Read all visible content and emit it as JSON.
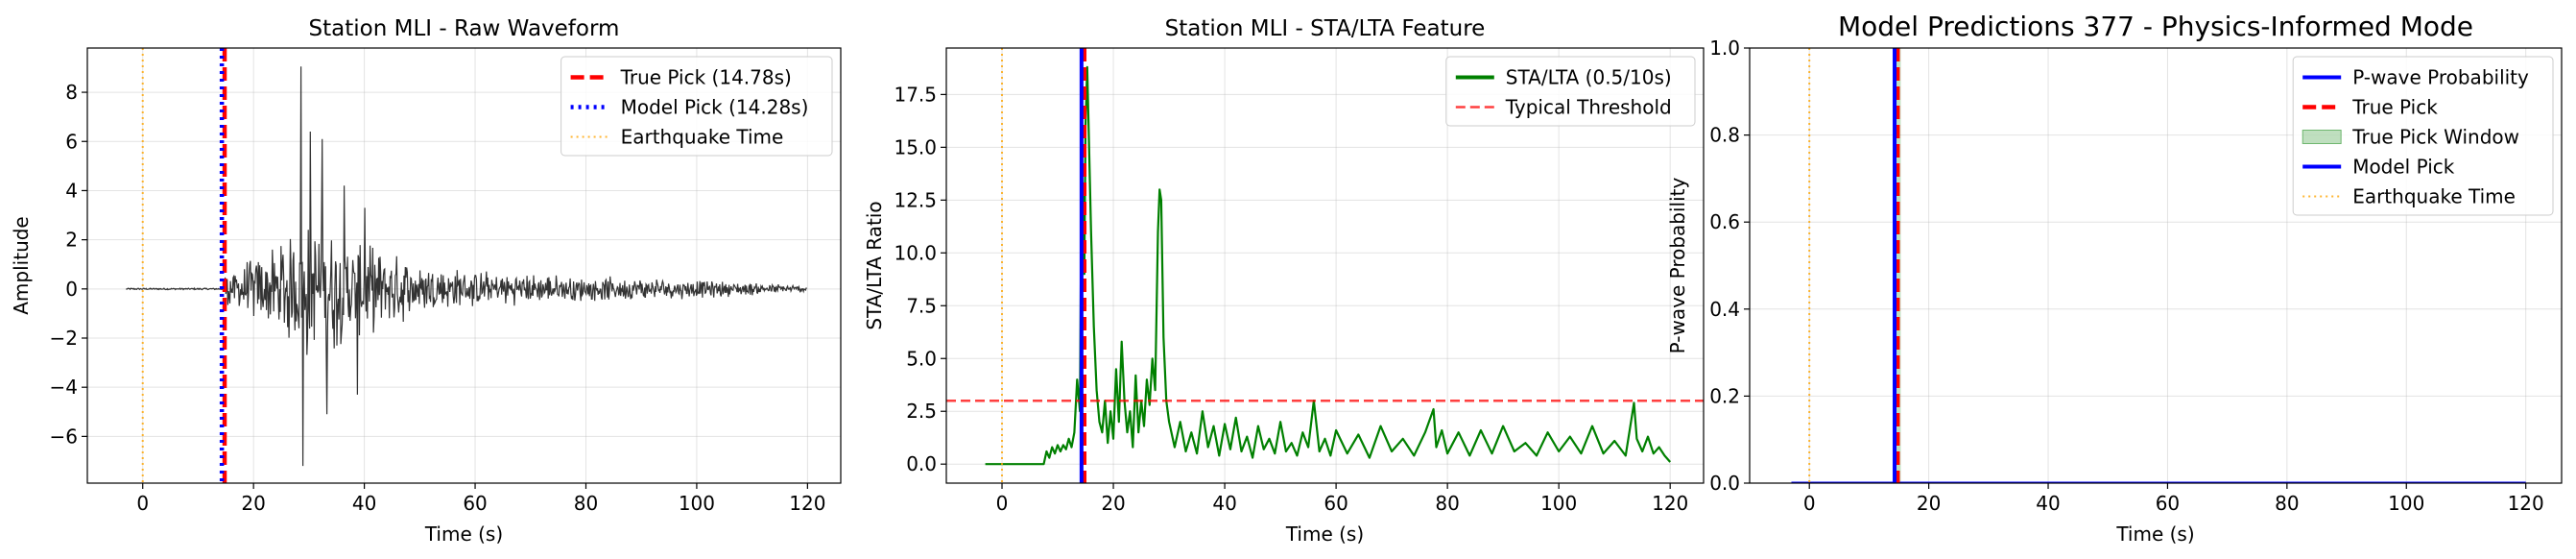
{
  "chart_data": [
    {
      "type": "line",
      "title": "Station MLI - Raw Waveform",
      "xlabel": "Time (s)",
      "ylabel": "Amplitude",
      "xlim": [
        -10,
        126
      ],
      "ylim": [
        -7.9,
        9.8
      ],
      "xticks": [
        0,
        20,
        40,
        60,
        80,
        100,
        120
      ],
      "yticks": [
        -6,
        -4,
        -2,
        0,
        2,
        4,
        6,
        8
      ],
      "grid": true,
      "legend_position": "top-right",
      "waveform": {
        "color": "#333333",
        "x_range": [
          -3,
          120
        ],
        "noise_level_before_onset": 0.03,
        "onset_x": 14.78,
        "peaks": [
          {
            "x": 28.6,
            "y": 9.05
          },
          {
            "x": 28.9,
            "y": -7.2
          },
          {
            "x": 30.2,
            "y": 6.4
          },
          {
            "x": 32.4,
            "y": 6.1
          },
          {
            "x": 33.3,
            "y": -5.1
          },
          {
            "x": 36.4,
            "y": 4.2
          },
          {
            "x": 38.8,
            "y": -4.3
          },
          {
            "x": 40.1,
            "y": 3.3
          }
        ],
        "envelope": [
          {
            "x": 14.78,
            "a": 0.8
          },
          {
            "x": 20,
            "a": 1.4
          },
          {
            "x": 26,
            "a": 2.2
          },
          {
            "x": 29,
            "a": 3.2
          },
          {
            "x": 35,
            "a": 2.6
          },
          {
            "x": 40,
            "a": 2.0
          },
          {
            "x": 50,
            "a": 1.2
          },
          {
            "x": 60,
            "a": 0.8
          },
          {
            "x": 80,
            "a": 0.55
          },
          {
            "x": 100,
            "a": 0.42
          },
          {
            "x": 120,
            "a": 0.15
          }
        ]
      },
      "vlines": [
        {
          "name": "True Pick (14.78s)",
          "x": 14.78,
          "color": "#ff0000",
          "style": "dashed"
        },
        {
          "name": "Model Pick (14.28s)",
          "x": 14.28,
          "color": "#0000ff",
          "style": "dotted"
        },
        {
          "name": "Earthquake Time",
          "x": 0,
          "color": "#ffa500",
          "style": "dotted-light"
        }
      ],
      "legend": [
        "True Pick (14.78s)",
        "Model Pick (14.28s)",
        "Earthquake Time"
      ]
    },
    {
      "type": "line",
      "title": "Station MLI - STA/LTA Feature",
      "xlabel": "Time (s)",
      "ylabel": "STA/LTA Ratio",
      "xlim": [
        -10,
        126
      ],
      "ylim": [
        -0.9,
        19.7
      ],
      "xticks": [
        0,
        20,
        40,
        60,
        80,
        100,
        120
      ],
      "yticks": [
        0.0,
        2.5,
        5.0,
        7.5,
        10.0,
        12.5,
        15.0,
        17.5
      ],
      "grid": true,
      "legend_position": "top-right",
      "series": [
        {
          "name": "STA/LTA (0.5/10s)",
          "color": "#008000",
          "x": [
            -3,
            7.5,
            8,
            8.5,
            9,
            9.5,
            10,
            10.5,
            11,
            11.5,
            12,
            12.5,
            13,
            13.5,
            14,
            14.28,
            14.5,
            14.78,
            15,
            15.3,
            15.6,
            16,
            16.5,
            17,
            17.5,
            18,
            18.5,
            19,
            19.5,
            20,
            20.5,
            21,
            21.5,
            22,
            22.5,
            23,
            23.5,
            24,
            24.5,
            25,
            25.5,
            26,
            26.5,
            27,
            27.5,
            28,
            28.3,
            28.6,
            29,
            29.5,
            30,
            31,
            32,
            33,
            34,
            35,
            36,
            37,
            38,
            39,
            40,
            41,
            42,
            43,
            44,
            45,
            46,
            47,
            48,
            49,
            50,
            51,
            52,
            53,
            54,
            55,
            56,
            57,
            58,
            59,
            60,
            62,
            64,
            66,
            68,
            70,
            72,
            74,
            76,
            77.5,
            78,
            79,
            80,
            82,
            84,
            86,
            88,
            90,
            92,
            94,
            96,
            98,
            100,
            102,
            104,
            106,
            108,
            110,
            112,
            113.5,
            114,
            115,
            116,
            117,
            118,
            119,
            120
          ],
          "values": [
            0.0,
            0.0,
            0.6,
            0.3,
            0.8,
            0.5,
            0.9,
            0.6,
            0.9,
            0.7,
            1.2,
            0.8,
            1.5,
            4.0,
            2.5,
            14.0,
            13.0,
            9.0,
            16.0,
            18.8,
            15.5,
            11.0,
            6.5,
            3.5,
            2.0,
            1.5,
            3.0,
            1.0,
            2.5,
            1.2,
            4.5,
            2.0,
            5.8,
            3.0,
            1.5,
            2.5,
            0.8,
            4.2,
            1.5,
            3.0,
            1.8,
            4.0,
            2.8,
            5.0,
            3.5,
            11.0,
            13.0,
            12.5,
            6.0,
            3.0,
            2.0,
            0.8,
            2.0,
            0.6,
            1.5,
            0.5,
            2.5,
            0.8,
            1.8,
            0.4,
            1.9,
            0.7,
            2.2,
            0.6,
            1.3,
            0.3,
            1.8,
            0.7,
            1.2,
            0.5,
            2.0,
            0.6,
            1.0,
            0.4,
            1.5,
            0.8,
            3.0,
            0.6,
            1.2,
            0.4,
            1.6,
            0.5,
            1.4,
            0.3,
            1.8,
            0.6,
            1.2,
            0.4,
            1.5,
            2.6,
            0.8,
            1.6,
            0.5,
            1.5,
            0.4,
            1.6,
            0.5,
            1.8,
            0.6,
            1.0,
            0.4,
            1.5,
            0.6,
            1.3,
            0.5,
            1.8,
            0.5,
            1.1,
            0.4,
            2.9,
            1.2,
            0.6,
            1.3,
            0.5,
            0.8,
            0.4,
            0.1
          ]
        }
      ],
      "hlines": [
        {
          "name": "Typical Threshold",
          "y": 3.0,
          "color": "#ff0000",
          "style": "dashed-light"
        }
      ],
      "vlines": [
        {
          "x": 14.78,
          "color": "#ff0000",
          "style": "dashed"
        },
        {
          "x": 14.28,
          "color": "#0000ff",
          "style": "solid"
        },
        {
          "x": 0,
          "color": "#ffa500",
          "style": "dotted-light"
        }
      ],
      "legend": [
        "STA/LTA (0.5/10s)",
        "Typical Threshold"
      ]
    },
    {
      "type": "line",
      "title": "Model Predictions 377 - Physics-Informed Mode",
      "xlabel": "Time (s)",
      "ylabel": "P-wave Probability",
      "xlim": [
        -10,
        126
      ],
      "ylim": [
        0.0,
        1.0
      ],
      "xticks": [
        0,
        20,
        40,
        60,
        80,
        100,
        120
      ],
      "yticks": [
        0.0,
        0.2,
        0.4,
        0.6,
        0.8,
        1.0
      ],
      "grid": true,
      "legend_position": "top-right",
      "series": [
        {
          "name": "P-wave Probability",
          "color": "#0000ff",
          "x": [
            -3,
            120
          ],
          "values": [
            0.0,
            0.0
          ]
        }
      ],
      "spans": [
        {
          "name": "True Pick Window",
          "x0": 14.3,
          "x1": 15.3,
          "color": "#008000"
        }
      ],
      "vlines": [
        {
          "name": "True Pick",
          "x": 14.78,
          "color": "#ff0000",
          "style": "dashed"
        },
        {
          "name": "Model Pick",
          "x": 14.28,
          "color": "#0000ff",
          "style": "solid"
        },
        {
          "name": "Earthquake Time",
          "x": 0,
          "color": "#ffa500",
          "style": "dotted-light"
        }
      ],
      "legend": [
        "P-wave Probability",
        "True Pick",
        "True Pick Window",
        "Model Pick",
        "Earthquake Time"
      ]
    }
  ]
}
